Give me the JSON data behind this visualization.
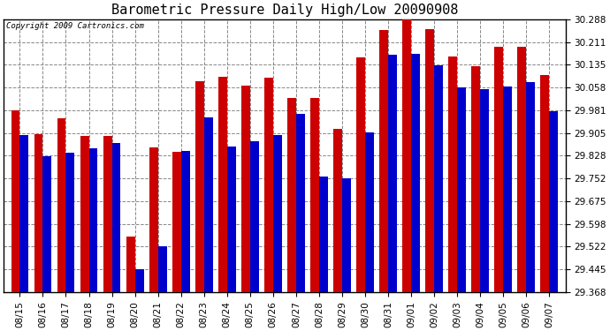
{
  "title": "Barometric Pressure Daily High/Low 20090908",
  "copyright": "Copyright 2009 Cartronics.com",
  "dates": [
    "08/15",
    "08/16",
    "08/17",
    "08/18",
    "08/19",
    "08/20",
    "08/21",
    "08/22",
    "08/23",
    "08/24",
    "08/25",
    "08/26",
    "08/27",
    "08/28",
    "08/29",
    "08/30",
    "08/31",
    "09/01",
    "09/02",
    "09/03",
    "09/04",
    "09/05",
    "09/06",
    "09/07"
  ],
  "highs": [
    29.98,
    29.9,
    29.955,
    29.895,
    29.895,
    29.555,
    29.855,
    29.84,
    30.078,
    30.095,
    30.063,
    30.09,
    30.022,
    30.022,
    29.92,
    30.16,
    30.252,
    30.3,
    30.255,
    30.162,
    30.13,
    30.195,
    30.195,
    30.1
  ],
  "lows": [
    29.898,
    29.825,
    29.838,
    29.852,
    29.87,
    29.445,
    29.522,
    29.843,
    29.958,
    29.858,
    29.878,
    29.898,
    29.968,
    29.758,
    29.752,
    29.908,
    30.168,
    30.172,
    30.133,
    30.058,
    30.052,
    30.062,
    30.075,
    29.978
  ],
  "bar_color_high": "#cc0000",
  "bar_color_low": "#0000cc",
  "bg_color": "#ffffff",
  "plot_bg_color": "#ffffff",
  "grid_color": "#888888",
  "ylim_min": 29.368,
  "ylim_max": 30.288,
  "yticks": [
    29.368,
    29.445,
    29.522,
    29.598,
    29.675,
    29.752,
    29.828,
    29.905,
    29.981,
    30.058,
    30.135,
    30.211,
    30.288
  ],
  "title_fontsize": 11,
  "tick_fontsize": 7.5,
  "copyright_fontsize": 6.5,
  "bar_width": 0.38
}
